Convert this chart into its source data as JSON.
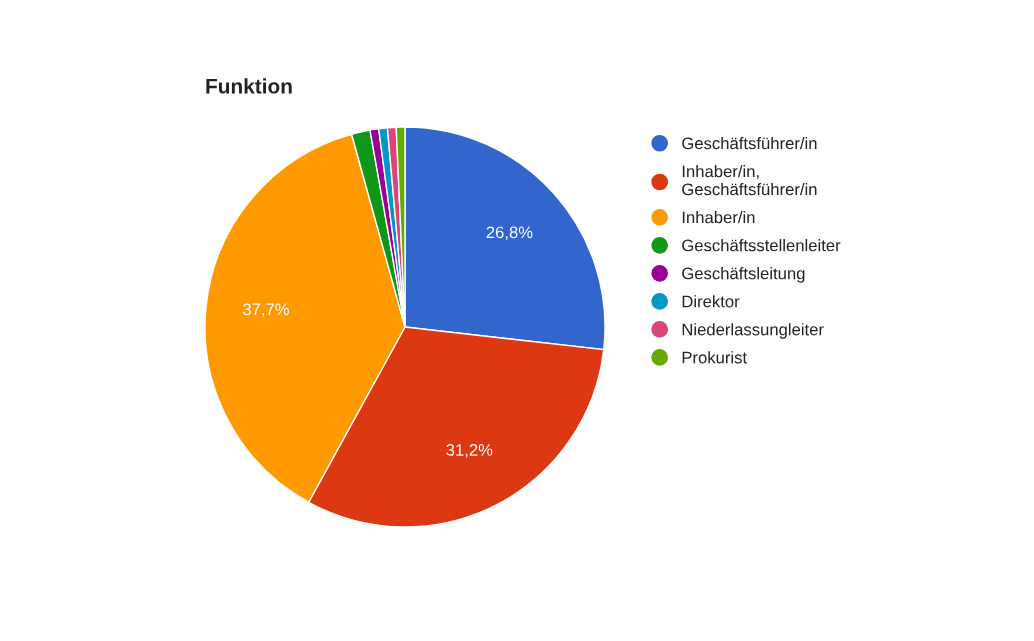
{
  "chart_data": {
    "type": "pie",
    "title": "Funktion",
    "categories": [
      "Geschäftsführer/in",
      "Inhaber/in,\nGeschäftsführer/in",
      "Inhaber/in",
      "Geschäftsstellenleiter",
      "Geschäftsleitung",
      "Direktor",
      "Niederlassungleiter",
      "Prokurist"
    ],
    "values": [
      26.8,
      31.2,
      37.7,
      1.5,
      0.7,
      0.7,
      0.7,
      0.7
    ],
    "colors": [
      "#3366cc",
      "#dc3912",
      "#ff9900",
      "#109618",
      "#990099",
      "#0099c6",
      "#dd4477",
      "#66aa00"
    ],
    "value_labels": [
      "26,8%",
      "31,2%",
      "37,7%",
      null,
      null,
      null,
      null,
      null
    ],
    "legend": "right"
  }
}
